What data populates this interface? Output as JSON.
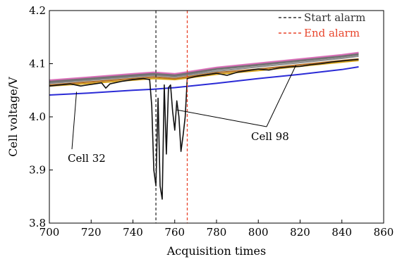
{
  "chart_data": {
    "type": "line",
    "xlabel": "Acquisition times",
    "ylabel": "Cell voltage/V",
    "xlim": [
      700,
      860
    ],
    "ylim": [
      3.8,
      4.2
    ],
    "xticks": [
      "700",
      "720",
      "740",
      "760",
      "780",
      "800",
      "820",
      "840",
      "860"
    ],
    "yticks": [
      "3.8",
      "3.9",
      "4.0",
      "4.1",
      "4.2"
    ],
    "grid": false,
    "legend_position": "top-right",
    "legend": [
      {
        "label": "Start alarm",
        "color": "#333333",
        "style": "dashed"
      },
      {
        "label": "End alarm",
        "color": "#e8452c",
        "style": "dashed"
      }
    ],
    "vlines": [
      {
        "x": 751,
        "color": "#333333",
        "style": "dashed"
      },
      {
        "x": 766,
        "color": "#e8452c",
        "style": "dashed"
      }
    ],
    "annotations": [
      {
        "label": "Cell 32",
        "point": [
          713,
          4.047
        ]
      },
      {
        "label": "Cell 98",
        "point": [
          761,
          4.013
        ]
      },
      {
        "label": "Cell 98",
        "point": [
          818,
          4.097
        ]
      }
    ],
    "series": [
      {
        "color": "#d6a31c",
        "x": [
          700,
          720,
          740,
          750,
          760,
          780,
          800,
          820,
          840,
          848
        ],
        "y": [
          4.058,
          4.063,
          4.069,
          4.072,
          4.07,
          4.08,
          4.087,
          4.095,
          4.103,
          4.106
        ]
      },
      {
        "color": "#b06b24",
        "x": [
          700,
          720,
          740,
          750,
          760,
          780,
          800,
          820,
          840,
          848
        ],
        "y": [
          4.06,
          4.066,
          4.072,
          4.075,
          4.072,
          4.083,
          4.09,
          4.098,
          4.106,
          4.109
        ]
      },
      {
        "color": "#8c8c8c",
        "x": [
          700,
          720,
          740,
          750,
          760,
          780,
          800,
          820,
          840,
          848
        ],
        "y": [
          4.063,
          4.069,
          4.075,
          4.078,
          4.075,
          4.086,
          4.094,
          4.102,
          4.11,
          4.114
        ]
      },
      {
        "color": "#777777",
        "x": [
          700,
          720,
          740,
          750,
          760,
          780,
          800,
          820,
          840,
          848
        ],
        "y": [
          4.065,
          4.071,
          4.077,
          4.08,
          4.077,
          4.089,
          4.097,
          4.105,
          4.113,
          4.117
        ]
      },
      {
        "color": "#6f6f6f",
        "x": [
          700,
          720,
          740,
          750,
          760,
          780,
          800,
          820,
          840,
          848
        ],
        "y": [
          4.067,
          4.073,
          4.079,
          4.082,
          4.079,
          4.091,
          4.099,
          4.107,
          4.115,
          4.119
        ]
      },
      {
        "color": "#d96fb8",
        "x": [
          700,
          720,
          740,
          750,
          760,
          780,
          800,
          820,
          840,
          848
        ],
        "y": [
          4.069,
          4.075,
          4.081,
          4.084,
          4.081,
          4.093,
          4.101,
          4.109,
          4.117,
          4.121
        ]
      },
      {
        "color": "#2b2bd6",
        "x": [
          700,
          720,
          740,
          750,
          760,
          780,
          800,
          820,
          840,
          848
        ],
        "y": [
          4.041,
          4.045,
          4.05,
          4.052,
          4.055,
          4.063,
          4.072,
          4.08,
          4.089,
          4.094
        ]
      },
      {
        "color": "#111111",
        "x": [
          700,
          710,
          715,
          720,
          725,
          727,
          729,
          735,
          740,
          745,
          748,
          749,
          750,
          751,
          752,
          753,
          754,
          755,
          756,
          757,
          758,
          759,
          760,
          761,
          762,
          763,
          764,
          765,
          766,
          770,
          775,
          780,
          785,
          790,
          795,
          800,
          805,
          810,
          815,
          820,
          825,
          830,
          835,
          840,
          845,
          848
        ],
        "y": [
          4.058,
          4.062,
          4.058,
          4.061,
          4.064,
          4.054,
          4.062,
          4.067,
          4.07,
          4.072,
          4.07,
          4.02,
          3.9,
          3.87,
          4.035,
          3.87,
          3.845,
          4.06,
          3.93,
          4.055,
          4.06,
          4.01,
          3.975,
          4.03,
          4.0,
          3.935,
          3.965,
          4.0,
          4.072,
          4.076,
          4.079,
          4.082,
          4.078,
          4.084,
          4.087,
          4.09,
          4.088,
          4.092,
          4.094,
          4.095,
          4.098,
          4.1,
          4.103,
          4.105,
          4.107,
          4.108
        ]
      }
    ]
  }
}
